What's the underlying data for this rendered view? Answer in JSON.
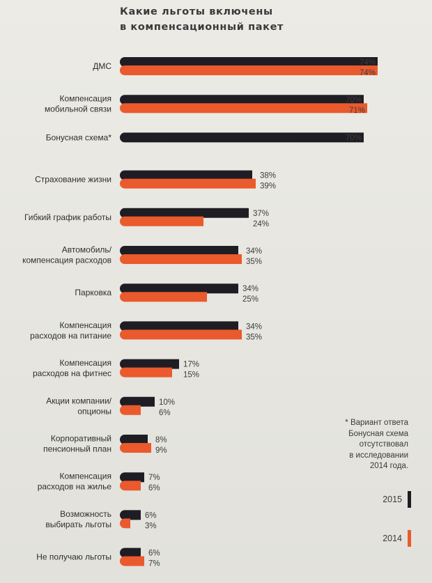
{
  "title_line1": "Какие льготы включены",
  "title_line2": "в компенсационный пакет",
  "note_lines": [
    "* Вариант ответа",
    "Бонусная схема",
    "отсутствовал",
    "в исследовании",
    "2014 года."
  ],
  "legend": [
    {
      "label": "2015",
      "color": "#1f1d24"
    },
    {
      "label": "2014",
      "color": "#ea5a2d"
    }
  ],
  "chart_data": {
    "type": "bar",
    "orientation": "horizontal",
    "title": "Какие льготы включены в компенсационный пакет",
    "value_suffix": "%",
    "legend_placement": "bottom-right",
    "grid": false,
    "xlim": [
      0,
      74
    ],
    "categories": [
      [
        "ДМС"
      ],
      [
        "Компенсация",
        "мобильной связи"
      ],
      [
        "Бонусная схема*"
      ],
      [
        "Страхование жизни"
      ],
      [
        "Гибкий график работы"
      ],
      [
        "Автомобиль/",
        "компенсация расходов"
      ],
      [
        "Парковка"
      ],
      [
        "Компенсация",
        "расходов на питание"
      ],
      [
        "Компенсация",
        "расходов на фитнес"
      ],
      [
        "Акции компании/",
        "опционы"
      ],
      [
        "Корпоративный",
        "пенсионный план"
      ],
      [
        "Компенсация",
        "расходов на жилье"
      ],
      [
        "Возможность",
        "выбирать льготы"
      ],
      [
        "Не получаю льготы"
      ]
    ],
    "series": [
      {
        "name": "2015",
        "color": "#1f1d24",
        "values": [
          74,
          70,
          70,
          38,
          37,
          34,
          34,
          34,
          17,
          10,
          8,
          7,
          6,
          6
        ]
      },
      {
        "name": "2014",
        "color": "#ea5a2d",
        "values": [
          74,
          71,
          null,
          39,
          24,
          35,
          25,
          35,
          15,
          6,
          9,
          6,
          3,
          7
        ]
      }
    ]
  }
}
